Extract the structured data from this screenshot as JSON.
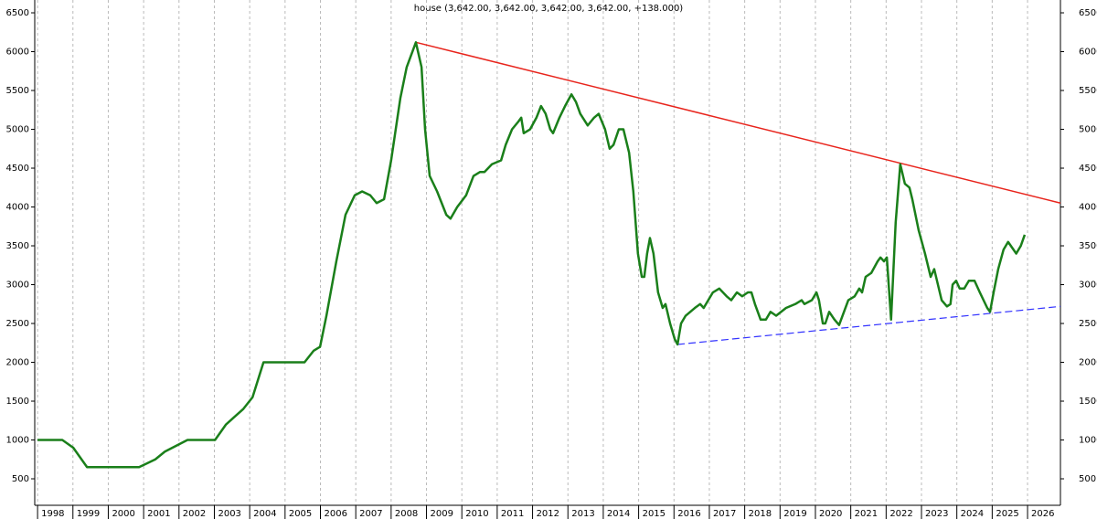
{
  "chart_data": {
    "type": "line",
    "title": "house (3,642.00, 3,642.00, 3,642.00, 3,642.00, +138.000)",
    "x": [
      1998.0,
      1998.7,
      1999.01,
      1999.4,
      2000.87,
      2001.33,
      2001.6,
      2002.24,
      2003.02,
      2003.33,
      2003.82,
      2004.08,
      2004.39,
      2005.55,
      2005.81,
      2005.99,
      2006.17,
      2006.45,
      2006.71,
      2006.97,
      2007.18,
      2007.41,
      2007.59,
      2007.8,
      2008.0,
      2008.26,
      2008.44,
      2008.7,
      2008.86,
      2008.96,
      2009.09,
      2009.3,
      2009.56,
      2009.68,
      2009.87,
      2010.12,
      2010.33,
      2010.51,
      2010.64,
      2010.85,
      2011.11,
      2011.24,
      2011.42,
      2011.6,
      2011.68,
      2011.75,
      2011.93,
      2012.11,
      2012.24,
      2012.37,
      2012.5,
      2012.58,
      2012.76,
      2012.92,
      2013.1,
      2013.23,
      2013.35,
      2013.56,
      2013.74,
      2013.87,
      2014.05,
      2014.18,
      2014.29,
      2014.44,
      2014.57,
      2014.73,
      2014.85,
      2014.98,
      2015.09,
      2015.16,
      2015.24,
      2015.32,
      2015.42,
      2015.55,
      2015.68,
      2015.76,
      2015.89,
      2016.02,
      2016.1,
      2016.2,
      2016.33,
      2016.59,
      2016.74,
      2016.84,
      2016.97,
      2017.1,
      2017.28,
      2017.49,
      2017.62,
      2017.78,
      2017.93,
      2018.09,
      2018.19,
      2018.29,
      2018.45,
      2018.6,
      2018.73,
      2018.89,
      2019.17,
      2019.43,
      2019.61,
      2019.69,
      2019.9,
      2020.03,
      2020.1,
      2020.21,
      2020.28,
      2020.39,
      2020.54,
      2020.67,
      2020.93,
      2021.11,
      2021.24,
      2021.32,
      2021.42,
      2021.58,
      2021.76,
      2021.84,
      2021.94,
      2022.02,
      2022.14,
      2022.27,
      2022.4,
      2022.53,
      2022.66,
      2022.74,
      2022.92,
      2023.1,
      2023.26,
      2023.36,
      2023.57,
      2023.72,
      2023.82,
      2023.88,
      2023.98,
      2024.08,
      2024.21,
      2024.34,
      2024.5,
      2024.65,
      2024.86,
      2024.94,
      2025.04,
      2025.17,
      2025.32,
      2025.45,
      2025.68,
      2025.81,
      2025.92
    ],
    "series": [
      {
        "name": "house",
        "color": "#1a7f1a",
        "values": [
          1000,
          1000,
          900,
          650,
          650,
          750,
          850,
          1000,
          1000,
          1200,
          1400,
          1550,
          2000,
          2000,
          2150,
          2200,
          2600,
          3300,
          3900,
          4150,
          4200,
          4150,
          4050,
          4100,
          4600,
          5400,
          5800,
          6120,
          5800,
          5000,
          4400,
          4200,
          3900,
          3850,
          4000,
          4150,
          4400,
          4450,
          4450,
          4550,
          4600,
          4800,
          5000,
          5100,
          5150,
          4950,
          5000,
          5150,
          5300,
          5200,
          5000,
          4950,
          5150,
          5300,
          5450,
          5350,
          5200,
          5050,
          5150,
          5200,
          5000,
          4750,
          4800,
          5000,
          5000,
          4700,
          4200,
          3400,
          3100,
          3100,
          3400,
          3600,
          3400,
          2900,
          2700,
          2750,
          2500,
          2300,
          2230,
          2500,
          2600,
          2700,
          2750,
          2700,
          2800,
          2900,
          2950,
          2850,
          2800,
          2900,
          2850,
          2900,
          2900,
          2750,
          2550,
          2550,
          2650,
          2600,
          2700,
          2750,
          2800,
          2750,
          2800,
          2900,
          2800,
          2500,
          2500,
          2650,
          2550,
          2480,
          2800,
          2850,
          2950,
          2900,
          3100,
          3150,
          3300,
          3350,
          3300,
          3350,
          2550,
          3800,
          4550,
          4300,
          4250,
          4100,
          3700,
          3400,
          3100,
          3200,
          2800,
          2720,
          2750,
          3000,
          3050,
          2950,
          2950,
          3050,
          3050,
          2900,
          2700,
          2650,
          2900,
          3200,
          3450,
          3550,
          3400,
          3500,
          3642
        ]
      }
    ],
    "trendlines": [
      {
        "color": "#e8241c",
        "dashed": false,
        "x": [
          2008.7,
          2026.93
        ],
        "y": [
          6120,
          4050
        ]
      },
      {
        "color": "#3333ff",
        "dashed": true,
        "x": [
          2016.1,
          2026.93
        ],
        "y": [
          2230,
          2720
        ]
      }
    ],
    "xlim": [
      1997.92,
      2026.93
    ],
    "ylim": [
      159,
      6665
    ],
    "xticks": [
      1998,
      1999,
      2000,
      2001,
      2002,
      2003,
      2004,
      2005,
      2006,
      2007,
      2008,
      2009,
      2010,
      2011,
      2012,
      2013,
      2014,
      2015,
      2016,
      2017,
      2018,
      2019,
      2020,
      2021,
      2022,
      2023,
      2024,
      2025,
      2026
    ],
    "yticks": [
      500,
      1000,
      1500,
      2000,
      2500,
      3000,
      3500,
      4000,
      4500,
      5000,
      5500,
      6000,
      6500
    ],
    "grid": true
  }
}
